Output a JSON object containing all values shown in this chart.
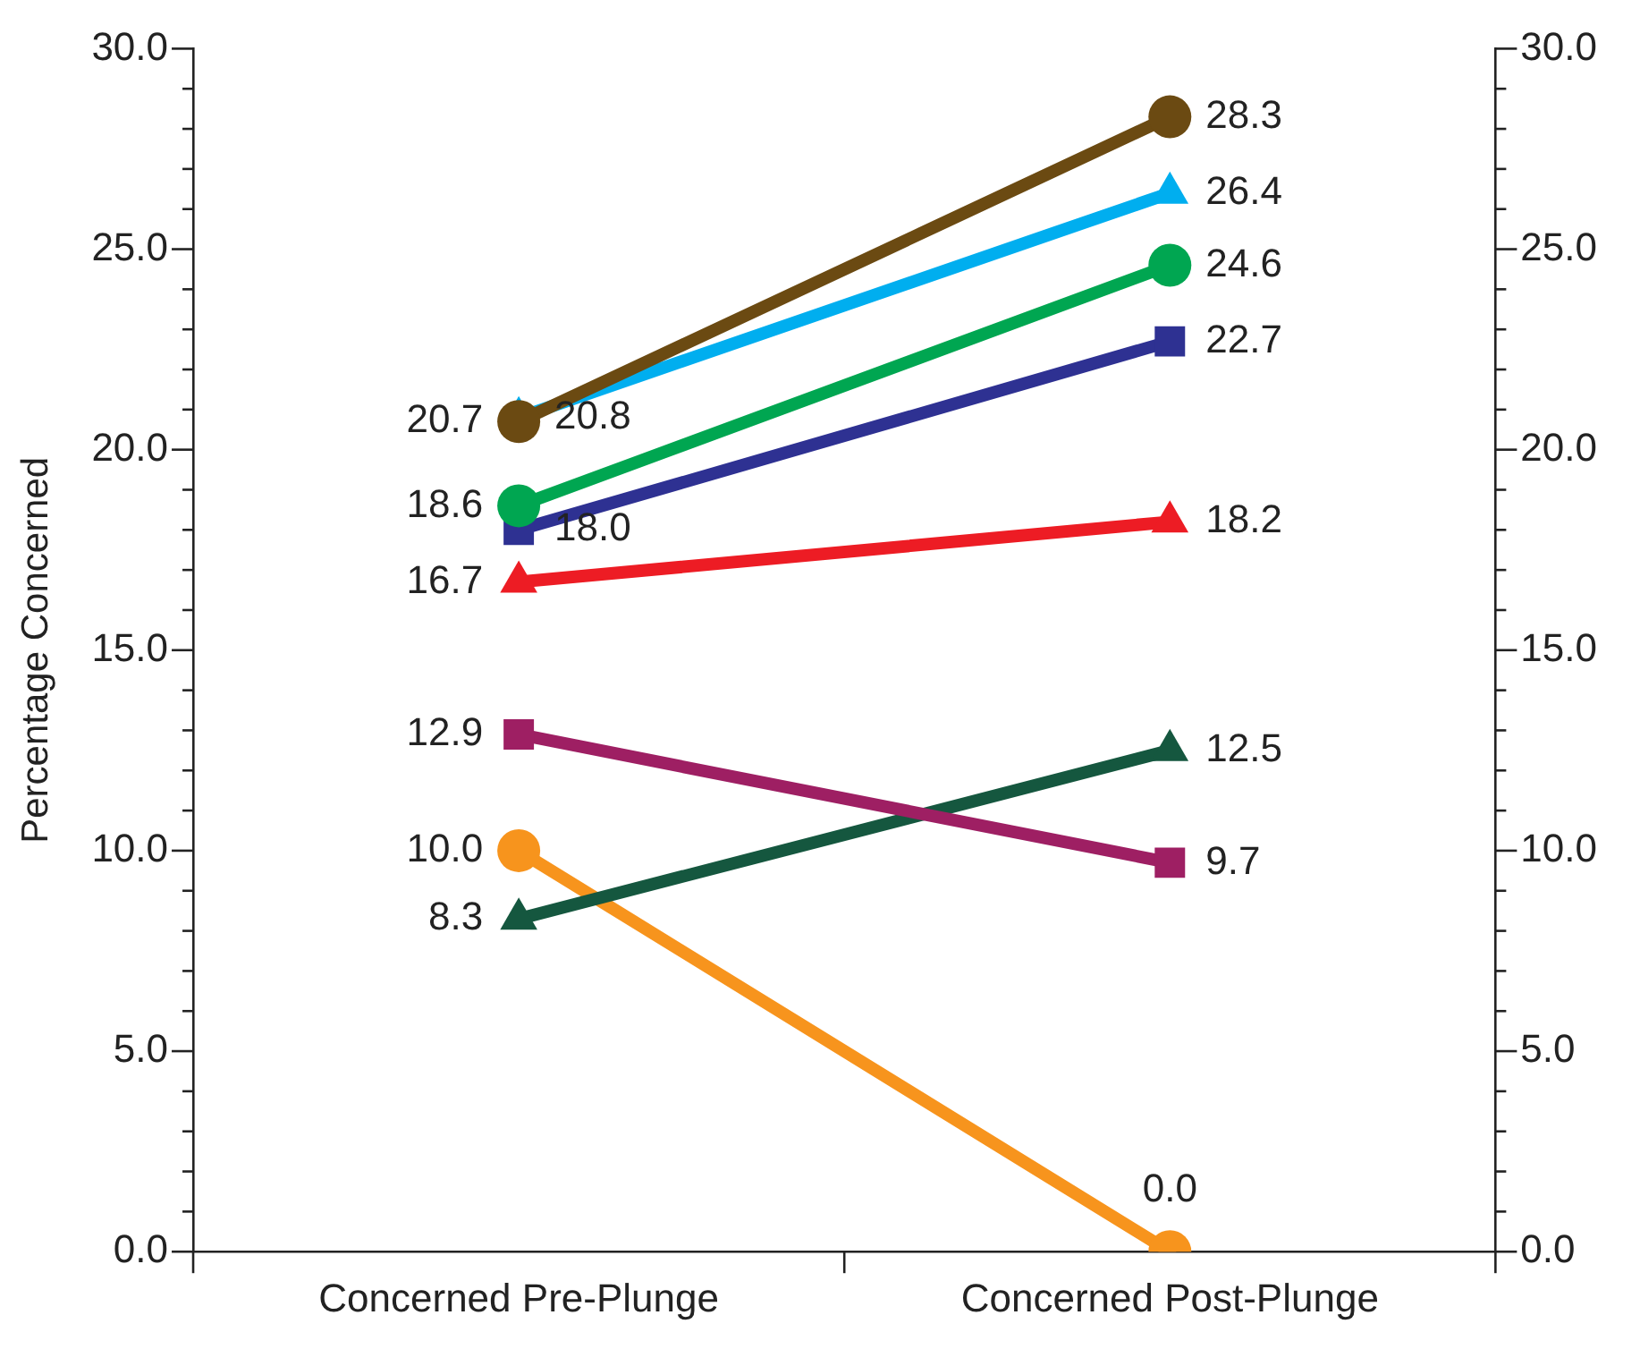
{
  "chart_data": {
    "type": "line",
    "ylabel": "Percentage Concerned",
    "categories": [
      "Concerned Pre-Plunge",
      "Concerned Post-Plunge"
    ],
    "series": [
      {
        "color": "#6b4a12",
        "marker": "circle",
        "values": [
          20.7,
          28.3
        ],
        "value_labels": [
          "20.7",
          "28.3"
        ]
      },
      {
        "color": "#00aeef",
        "marker": "triangle",
        "values": [
          20.8,
          26.4
        ],
        "value_labels": [
          "20.8",
          "26.4"
        ]
      },
      {
        "color": "#00a651",
        "marker": "circle",
        "values": [
          18.6,
          24.6
        ],
        "value_labels": [
          "18.6",
          "24.6"
        ]
      },
      {
        "color": "#2e3192",
        "marker": "square",
        "values": [
          18.0,
          22.7
        ],
        "value_labels": [
          "18.0",
          "22.7"
        ]
      },
      {
        "color": "#ed1c24",
        "marker": "triangle",
        "values": [
          16.7,
          18.2
        ],
        "value_labels": [
          "16.7",
          "18.2"
        ]
      },
      {
        "color": "#9e1f63",
        "marker": "square",
        "values": [
          12.9,
          9.7
        ],
        "value_labels": [
          "12.9",
          "9.7"
        ]
      },
      {
        "color": "#15573f",
        "marker": "triangle",
        "values": [
          8.3,
          12.5
        ],
        "value_labels": [
          "8.3",
          "12.5"
        ]
      },
      {
        "color": "#f7941d",
        "marker": "circle",
        "values": [
          10.0,
          0.0
        ],
        "value_labels": [
          "10.0",
          "0.0"
        ]
      }
    ],
    "grid": false,
    "legend": false,
    "line_style": "solid",
    "ylim": [
      0,
      30
    ],
    "yticks": [
      {
        "value": 0,
        "label": "0.0"
      },
      {
        "value": 1,
        "label": null
      },
      {
        "value": 2,
        "label": null
      },
      {
        "value": 3,
        "label": null
      },
      {
        "value": 4,
        "label": null
      },
      {
        "value": 5,
        "label": "5.0"
      },
      {
        "value": 6,
        "label": null
      },
      {
        "value": 7,
        "label": null
      },
      {
        "value": 8,
        "label": null
      },
      {
        "value": 9,
        "label": null
      },
      {
        "value": 10,
        "label": "10.0"
      },
      {
        "value": 11,
        "label": null
      },
      {
        "value": 12,
        "label": null
      },
      {
        "value": 13,
        "label": null
      },
      {
        "value": 14,
        "label": null
      },
      {
        "value": 15,
        "label": "15.0"
      },
      {
        "value": 16,
        "label": null
      },
      {
        "value": 17,
        "label": null
      },
      {
        "value": 18,
        "label": null
      },
      {
        "value": 19,
        "label": null
      },
      {
        "value": 20,
        "label": "20.0"
      },
      {
        "value": 21,
        "label": null
      },
      {
        "value": 22,
        "label": null
      },
      {
        "value": 23,
        "label": null
      },
      {
        "value": 24,
        "label": null
      },
      {
        "value": 25,
        "label": "25.0"
      },
      {
        "value": 26,
        "label": null
      },
      {
        "value": 27,
        "label": null
      },
      {
        "value": 28,
        "label": null
      },
      {
        "value": 29,
        "label": null
      },
      {
        "value": 30,
        "label": "30.0"
      }
    ],
    "y2lim": [
      0,
      30
    ],
    "y2ticks": [
      {
        "value": 0,
        "label": "0.0"
      },
      {
        "value": 1,
        "label": null
      },
      {
        "value": 2,
        "label": null
      },
      {
        "value": 3,
        "label": null
      },
      {
        "value": 4,
        "label": null
      },
      {
        "value": 5,
        "label": "5.0"
      },
      {
        "value": 6,
        "label": null
      },
      {
        "value": 7,
        "label": null
      },
      {
        "value": 8,
        "label": null
      },
      {
        "value": 9,
        "label": null
      },
      {
        "value": 10,
        "label": "10.0"
      },
      {
        "value": 11,
        "label": null
      },
      {
        "value": 12,
        "label": null
      },
      {
        "value": 13,
        "label": null
      },
      {
        "value": 14,
        "label": null
      },
      {
        "value": 15,
        "label": "15.0"
      },
      {
        "value": 16,
        "label": null
      },
      {
        "value": 17,
        "label": null
      },
      {
        "value": 18,
        "label": null
      },
      {
        "value": 19,
        "label": null
      },
      {
        "value": 20,
        "label": "20.0"
      },
      {
        "value": 21,
        "label": null
      },
      {
        "value": 22,
        "label": null
      },
      {
        "value": 23,
        "label": null
      },
      {
        "value": 24,
        "label": null
      },
      {
        "value": 25,
        "label": "25.0"
      },
      {
        "value": 26,
        "label": null
      },
      {
        "value": 27,
        "label": null
      },
      {
        "value": 28,
        "label": null
      },
      {
        "value": 29,
        "label": null
      },
      {
        "value": 30,
        "label": "30.0"
      }
    ]
  }
}
